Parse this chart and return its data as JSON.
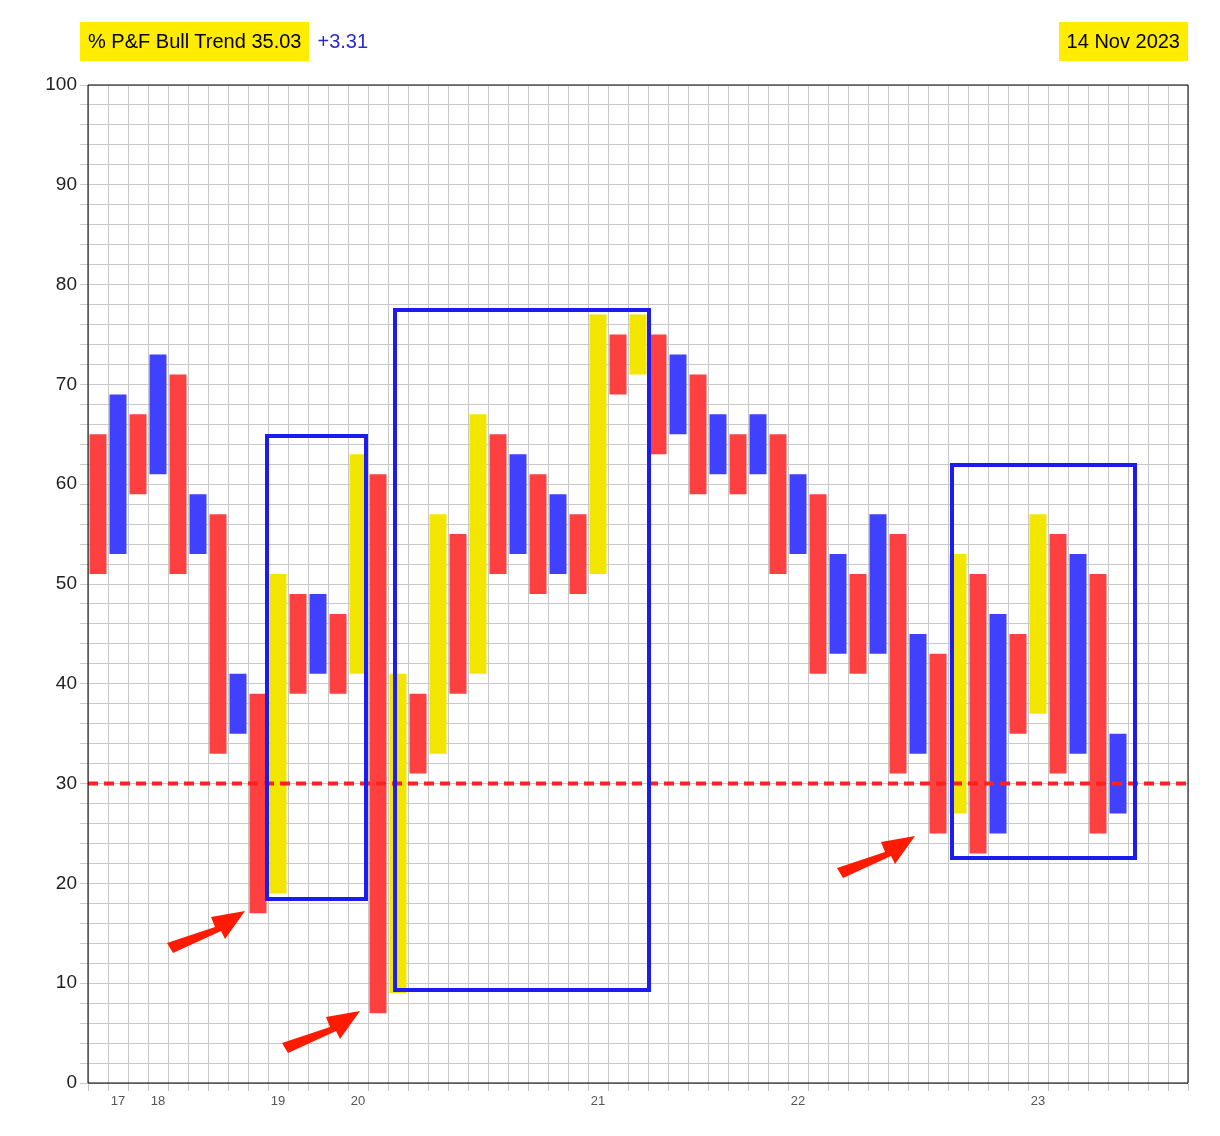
{
  "chart_data": {
    "type": "bar",
    "title": "% P&F Bull Trend 35.03",
    "subtitle": "+3.31",
    "annotations": [
      "14 Nov 2023"
    ],
    "categories": [
      null,
      "17",
      null,
      "18",
      null,
      null,
      null,
      null,
      null,
      "19",
      null,
      null,
      null,
      "20",
      null,
      null,
      null,
      null,
      null,
      null,
      null,
      null,
      null,
      null,
      null,
      "21",
      null,
      null,
      null,
      null,
      null,
      null,
      null,
      null,
      null,
      "22",
      null,
      null,
      null,
      null,
      null,
      null,
      null,
      null,
      null,
      null,
      null,
      "23",
      null,
      null,
      null,
      null,
      null,
      null,
      null
    ],
    "base": [
      51,
      53,
      59,
      61,
      51,
      53,
      33,
      35,
      17,
      19,
      39,
      41,
      39,
      41,
      7,
      9,
      31,
      33,
      39,
      41,
      51,
      53,
      49,
      51,
      49,
      51,
      69,
      71,
      63,
      65,
      59,
      61,
      59,
      61,
      51,
      53,
      41,
      43,
      41,
      43,
      31,
      33,
      25,
      27,
      23,
      25,
      35,
      37,
      31,
      33,
      25,
      27,
      null,
      null,
      null
    ],
    "values": [
      14,
      16,
      8,
      12,
      20,
      6,
      24,
      6,
      22,
      32,
      10,
      8,
      8,
      22,
      54,
      32,
      8,
      24,
      16,
      26,
      14,
      10,
      12,
      8,
      8,
      26,
      6,
      6,
      12,
      8,
      12,
      6,
      6,
      6,
      14,
      8,
      18,
      10,
      10,
      14,
      24,
      12,
      18,
      26,
      28,
      22,
      10,
      20,
      24,
      20,
      26,
      8,
      null,
      null,
      null
    ],
    "colors": [
      "#ff4040",
      "#4040ff",
      "#ff4040",
      "#4040ff",
      "#ff4040",
      "#4040ff",
      "#ff4040",
      "#4040ff",
      "#ff4040",
      "#f2e600",
      "#ff4040",
      "#4040ff",
      "#ff4040",
      "#f2e600",
      "#ff4040",
      "#f2e600",
      "#ff4040",
      "#f2e600",
      "#ff4040",
      "#f2e600",
      "#ff4040",
      "#4040ff",
      "#ff4040",
      "#4040ff",
      "#ff4040",
      "#f2e600",
      "#ff4040",
      "#f2e600",
      "#ff4040",
      "#4040ff",
      "#ff4040",
      "#4040ff",
      "#ff4040",
      "#4040ff",
      "#ff4040",
      "#4040ff",
      "#ff4040",
      "#4040ff",
      "#ff4040",
      "#4040ff",
      "#ff4040",
      "#4040ff",
      "#ff4040",
      "#f2e600",
      "#ff4040",
      "#4040ff",
      "#ff4040",
      "#f2e600",
      "#ff4040",
      "#4040ff",
      "#ff4040",
      "#4040ff",
      "#ff4040",
      "#4040ff",
      "#ff4040"
    ],
    "ylim": [
      0,
      100
    ],
    "yticks": [
      0,
      {
        "value": 2,
        "label": null
      },
      {
        "value": 4,
        "label": null
      },
      {
        "value": 6,
        "label": null
      },
      {
        "value": 8,
        "label": null
      },
      10,
      {
        "value": 12,
        "label": null
      },
      {
        "value": 14,
        "label": null
      },
      {
        "value": 16,
        "label": null
      },
      {
        "value": 18,
        "label": null
      },
      20,
      {
        "value": 22,
        "label": null
      },
      {
        "value": 24,
        "label": null
      },
      {
        "value": 26,
        "label": null
      },
      {
        "value": 28,
        "label": null
      },
      30,
      {
        "value": 32,
        "label": null
      },
      {
        "value": 34,
        "label": null
      },
      {
        "value": 36,
        "label": null
      },
      {
        "value": 38,
        "label": null
      },
      40,
      {
        "value": 42,
        "label": null
      },
      {
        "value": 44,
        "label": null
      },
      {
        "value": 46,
        "label": null
      },
      {
        "value": 48,
        "label": null
      },
      50,
      {
        "value": 52,
        "label": null
      },
      {
        "value": 54,
        "label": null
      },
      {
        "value": 56,
        "label": null
      },
      {
        "value": 58,
        "label": null
      },
      60,
      {
        "value": 62,
        "label": null
      },
      {
        "value": 64,
        "label": null
      },
      {
        "value": 66,
        "label": null
      },
      {
        "value": 68,
        "label": null
      },
      70,
      {
        "value": 72,
        "label": null
      },
      {
        "value": 74,
        "label": null
      },
      {
        "value": 76,
        "label": null
      },
      {
        "value": 78,
        "label": null
      },
      80,
      {
        "value": 82,
        "label": null
      },
      {
        "value": 84,
        "label": null
      },
      {
        "value": 86,
        "label": null
      },
      {
        "value": 88,
        "label": null
      },
      90,
      {
        "value": 92,
        "label": null
      },
      {
        "value": 94,
        "label": null
      },
      {
        "value": 96,
        "label": null
      },
      {
        "value": 98,
        "label": null
      },
      100
    ],
    "ref_lines": [
      {
        "axis": "y",
        "value": 30,
        "color": "#ff2020",
        "line_style": "dashed"
      }
    ],
    "grid": true,
    "legend": false
  }
}
